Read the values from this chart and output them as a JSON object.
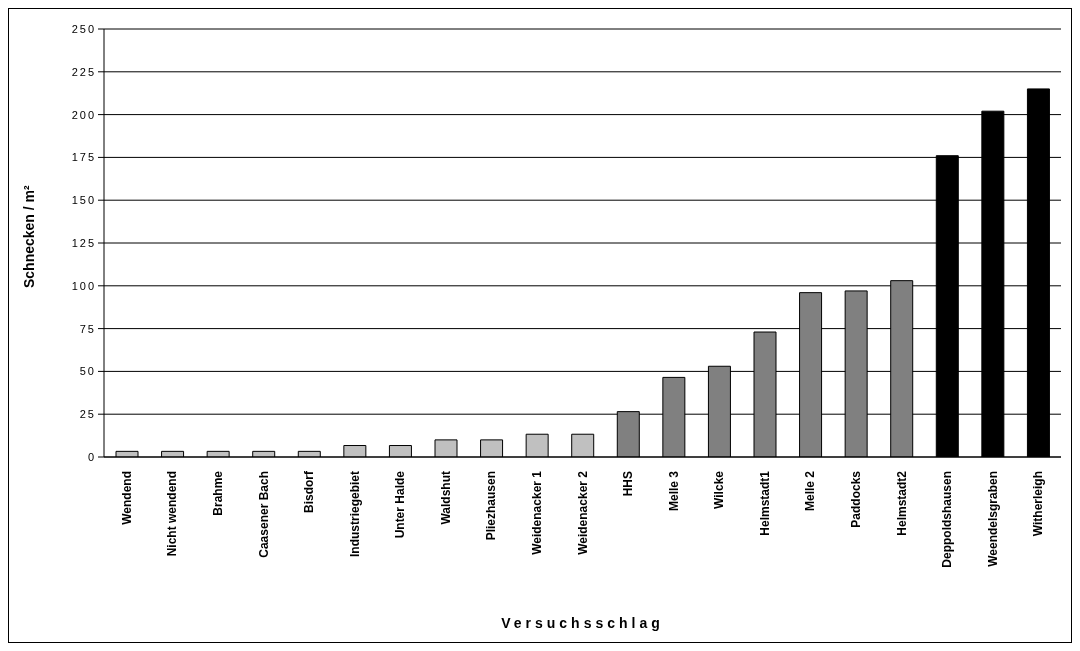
{
  "chart_data": {
    "type": "bar",
    "xlabel": "Versuchsschlag",
    "ylabel": "Schnecken / m²",
    "categories": [
      "Wendend",
      "Nicht wendend",
      "Brahme",
      "Caasener Bach",
      "Bisdorf",
      "Industriegebiet",
      "Unter Halde",
      "Waldshut",
      "Pliezhausen",
      "Weidenacker 1",
      "Weidenacker 2",
      "HHS",
      "Melle 3",
      "Wilcke",
      "Helmstadt1",
      "Melle 2",
      "Paddocks",
      "Helmstadt2",
      "Deppoldshausen",
      "Weendelsgraben",
      "Witherleigh"
    ],
    "values": [
      3.3,
      3.3,
      3.3,
      3.3,
      3.3,
      6.7,
      6.7,
      10,
      10,
      13.3,
      13.3,
      26.5,
      46.5,
      53,
      73,
      96,
      97,
      103,
      176,
      202,
      215
    ],
    "colors": [
      "#c0c0c0",
      "#c0c0c0",
      "#c0c0c0",
      "#c0c0c0",
      "#c0c0c0",
      "#c0c0c0",
      "#c0c0c0",
      "#c0c0c0",
      "#c0c0c0",
      "#c0c0c0",
      "#c0c0c0",
      "#808080",
      "#808080",
      "#808080",
      "#808080",
      "#808080",
      "#808080",
      "#808080",
      "#000000",
      "#000000",
      "#000000"
    ],
    "ylim": [
      0,
      250
    ],
    "yticks": [
      0,
      25,
      50,
      75,
      100,
      125,
      150,
      175,
      200,
      225,
      250
    ],
    "grid": "y"
  }
}
